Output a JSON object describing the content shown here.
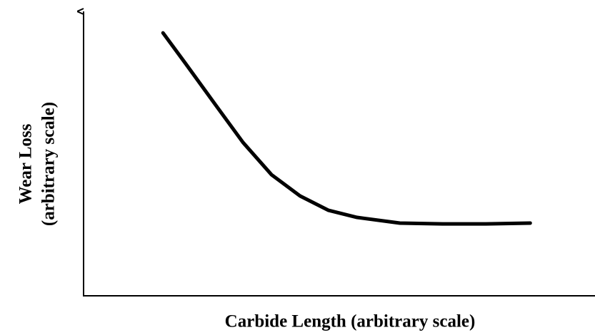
{
  "chart_data": {
    "type": "line",
    "x_label": "Carbide Length  (arbitrary scale)",
    "y_label": [
      "Wear Loss",
      "(arbitrary scale)"
    ],
    "x": [
      15.6,
      20.1,
      25.7,
      31.3,
      36.9,
      42.5,
      48.1,
      53.7,
      62.1,
      70.5,
      79.0,
      87.7
    ],
    "values": [
      92.9,
      81.9,
      68.0,
      54.2,
      42.8,
      35.3,
      30.2,
      27.7,
      25.7,
      25.4,
      25.4,
      25.7
    ],
    "color": "#000000",
    "xlim": [
      0,
      100
    ],
    "ylim": [
      0,
      100
    ]
  }
}
